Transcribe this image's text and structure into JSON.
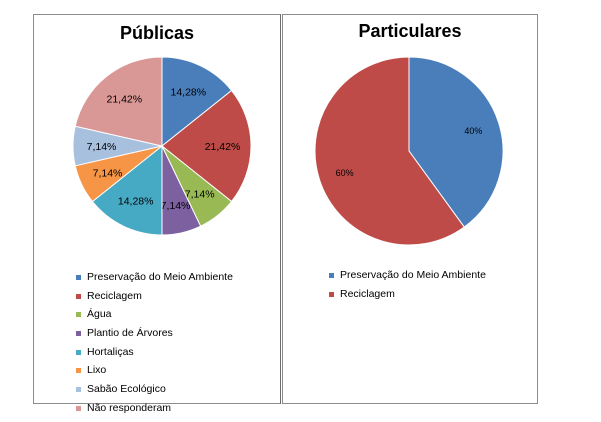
{
  "chart_data": [
    {
      "type": "pie",
      "title": "Públicas",
      "categories": [
        "Preservação do Meio Ambiente",
        "Reciclagem",
        "Água",
        "Plantio de Árvores",
        "Hortaliças",
        "Lixo",
        "Sabão Ecológico",
        "Não responderam"
      ],
      "values": [
        14.28,
        21.42,
        7.14,
        7.14,
        14.28,
        7.14,
        7.14,
        21.42
      ],
      "labels": [
        "14,28%",
        "21,42%",
        "7,14%",
        "7,14%",
        "14,28%",
        "7,14%",
        "7,14%",
        "21,42%"
      ],
      "colors": [
        "#4a7ebb",
        "#be4b48",
        "#98b954",
        "#7d60a0",
        "#46aac5",
        "#f69546",
        "#a7c0de",
        "#d99795"
      ],
      "legend_position": "bottom"
    },
    {
      "type": "pie",
      "title": "Particulares",
      "categories": [
        "Preservação do Meio Ambiente",
        "Reciclagem"
      ],
      "values": [
        40,
        60
      ],
      "labels": [
        "40%",
        "60%"
      ],
      "colors": [
        "#4a7ebb",
        "#be4b48"
      ],
      "legend_position": "bottom"
    }
  ]
}
